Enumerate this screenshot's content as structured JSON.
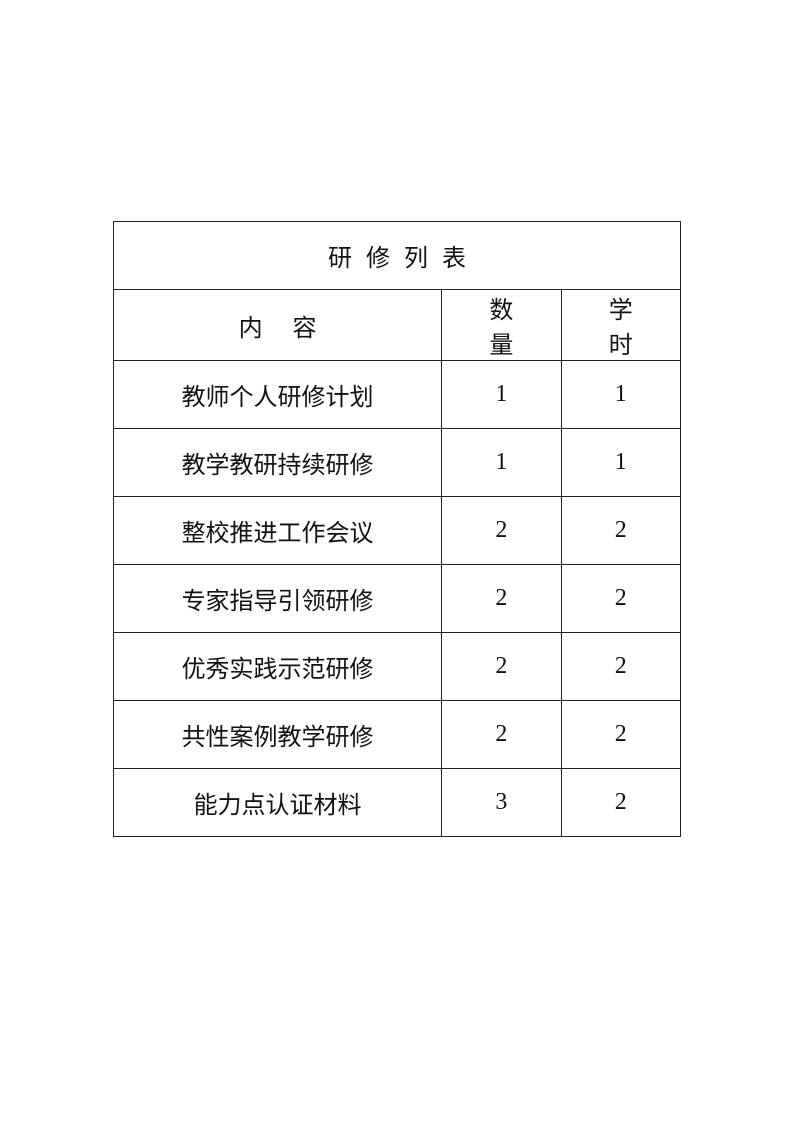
{
  "table": {
    "title": "研修列表",
    "headers": [
      "内容",
      "数量",
      "学时"
    ],
    "rows": [
      {
        "content": "教师个人研修计划",
        "quantity": "1",
        "hours": "1"
      },
      {
        "content": "教学教研持续研修",
        "quantity": "1",
        "hours": "1"
      },
      {
        "content": "整校推进工作会议",
        "quantity": "2",
        "hours": "2"
      },
      {
        "content": "专家指导引领研修",
        "quantity": "2",
        "hours": "2"
      },
      {
        "content": "优秀实践示范研修",
        "quantity": "2",
        "hours": "2"
      },
      {
        "content": "共性案例教学研修",
        "quantity": "2",
        "hours": "2"
      },
      {
        "content": "能力点认证材料",
        "quantity": "3",
        "hours": "2"
      }
    ]
  }
}
